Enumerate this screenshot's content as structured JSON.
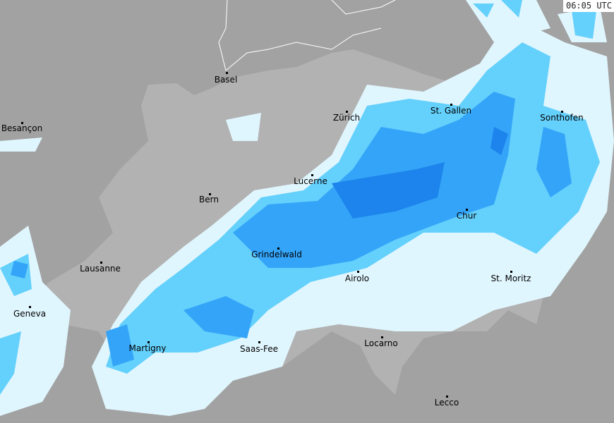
{
  "timestamp": "06:05 UTC",
  "cities": [
    {
      "id": "basel",
      "name": "Basel"
    },
    {
      "id": "besancon",
      "name": "Besançon"
    },
    {
      "id": "zurich",
      "name": "Zürich"
    },
    {
      "id": "st-gallen",
      "name": "St. Gallen"
    },
    {
      "id": "sonthofen",
      "name": "Sonthofen"
    },
    {
      "id": "lucerne",
      "name": "Lucerne"
    },
    {
      "id": "bern",
      "name": "Bern"
    },
    {
      "id": "chur",
      "name": "Chur"
    },
    {
      "id": "grindelwald",
      "name": "Grindelwald"
    },
    {
      "id": "lausanne",
      "name": "Lausanne"
    },
    {
      "id": "airolo",
      "name": "Airolo"
    },
    {
      "id": "st-moritz",
      "name": "St. Moritz"
    },
    {
      "id": "geneva",
      "name": "Geneva"
    },
    {
      "id": "martigny",
      "name": "Martigny"
    },
    {
      "id": "saas-fee",
      "name": "Saas-Fee"
    },
    {
      "id": "locarno",
      "name": "Locarno"
    },
    {
      "id": "lecco",
      "name": "Lecco"
    }
  ],
  "colors": {
    "background": "#a2a2a2",
    "switzerland": "#b2b2b2",
    "rain_light": "#e0f6fe",
    "rain_moderate": "#64d0fc",
    "rain_heavy": "#34a4f8",
    "rain_very_heavy": "#1c84ec"
  }
}
